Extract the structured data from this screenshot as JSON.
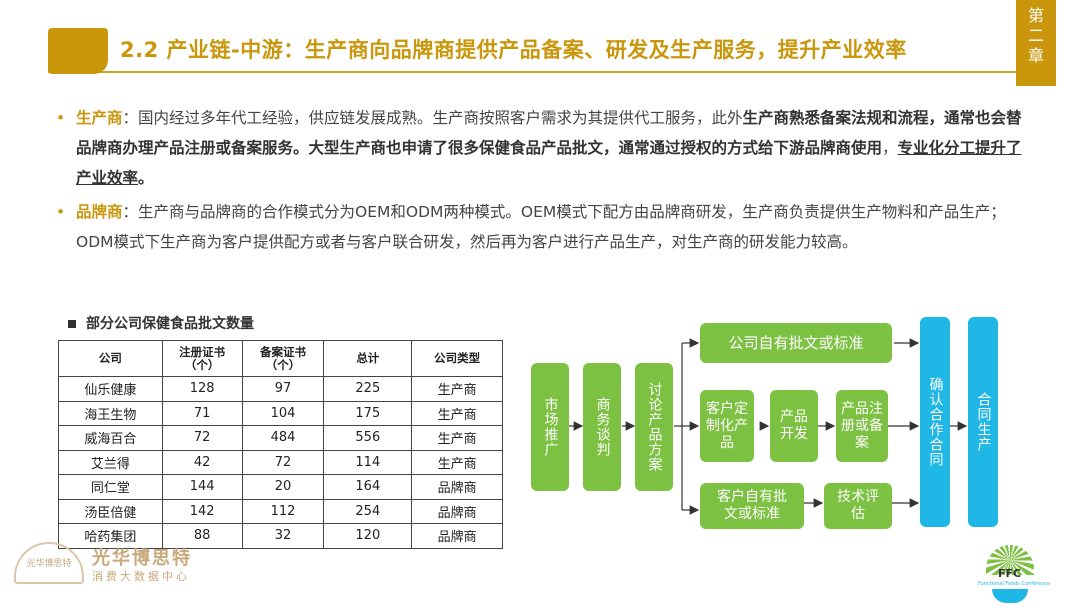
{
  "title": "2.2 产业链-中游：生产商向品牌商提供产品备案、研发及生产服务，提升产业效率",
  "chapter_tab": "第二章",
  "bullets": {
    "b1": {
      "key": "生产商",
      "t1": "：国内经过多年代工经验，供应链发展成熟。生产商按照客户需求为其提供代工服务，此外",
      "bold1": "生产商熟悉备案法规和流程，通常也会替品牌商办理产品注册或备案服务。大型生产商也申请了很多保健食品产品批文，通常通过授权的方式给下游品牌商使用",
      "t2": "，",
      "underline": "专业化分工提升了产业效率",
      "t3": "。"
    },
    "b2": {
      "key": "品牌商",
      "t1": "：生产商与品牌商的合作模式分为OEM和ODM两种模式。OEM模式下配方由品牌商研发，生产商负责提供生产物料和产品生产；ODM模式下生产商为客户提供配方或者与客户联合研发，然后再为客户进行产品生产，对生产商的研发能力较高。"
    }
  },
  "table": {
    "caption": "部分公司保健食品批文数量",
    "headers": [
      "公司",
      "注册证书\n（个）",
      "备案证书\n（个）",
      "总计",
      "公司类型"
    ],
    "rows": [
      [
        "仙乐健康",
        "128",
        "97",
        "225",
        "生产商"
      ],
      [
        "海王生物",
        "71",
        "104",
        "175",
        "生产商"
      ],
      [
        "威海百合",
        "72",
        "484",
        "556",
        "生产商"
      ],
      [
        "艾兰得",
        "42",
        "72",
        "114",
        "生产商"
      ],
      [
        "同仁堂",
        "144",
        "20",
        "164",
        "品牌商"
      ],
      [
        "汤臣倍健",
        "142",
        "112",
        "254",
        "品牌商"
      ],
      [
        "哈药集团",
        "88",
        "32",
        "120",
        "品牌商"
      ]
    ]
  },
  "flow": {
    "market": "市场推广",
    "negotiate": "商务谈判",
    "discuss": "讨论产品方案",
    "own_approval": "公司自有批文或标准",
    "custom": "客户定制化产品",
    "dev": "产品开发",
    "register": "产品注册或备案",
    "client_approval": "客户自有批文或标准",
    "tech_eval": "技术评估",
    "confirm": "确认合作合同",
    "contract_prod": "合同生产"
  },
  "logos": {
    "left_mark": "光华博思特",
    "left_name": "光华博思特",
    "left_sub": "消费大数据中心",
    "right_abbr": "FFC",
    "right_caption": "Functional Foods Conference"
  },
  "colors": {
    "gold": "#c9960c",
    "green": "#7dc142",
    "blue": "#1fb7e6"
  }
}
